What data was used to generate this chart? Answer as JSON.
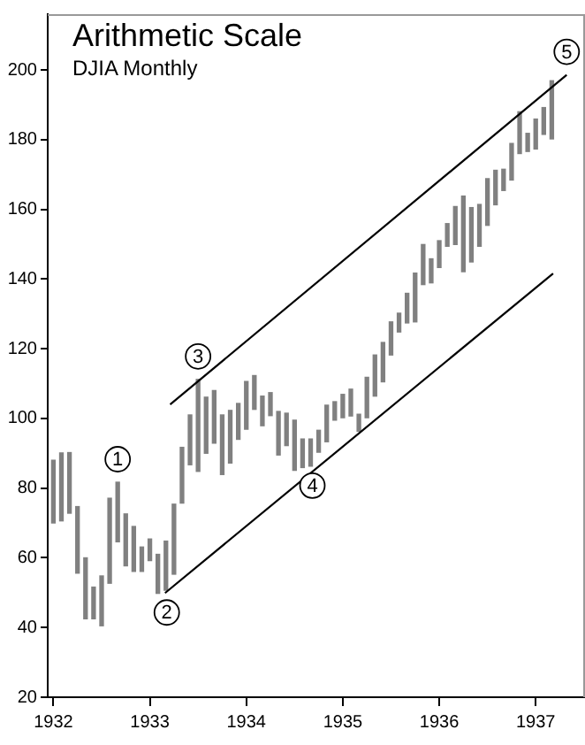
{
  "chart_data": {
    "type": "bar",
    "title": "Arithmetic Scale",
    "subtitle": "DJIA Monthly",
    "x": [
      "1932-01",
      "1932-02",
      "1932-03",
      "1932-04",
      "1932-05",
      "1932-06",
      "1932-07",
      "1932-08",
      "1932-09",
      "1932-10",
      "1932-11",
      "1932-12",
      "1933-01",
      "1933-02",
      "1933-03",
      "1933-04",
      "1933-05",
      "1933-06",
      "1933-07",
      "1933-08",
      "1933-09",
      "1933-10",
      "1933-11",
      "1933-12",
      "1934-01",
      "1934-02",
      "1934-03",
      "1934-04",
      "1934-05",
      "1934-06",
      "1934-07",
      "1934-08",
      "1934-09",
      "1934-10",
      "1934-11",
      "1934-12",
      "1935-01",
      "1935-02",
      "1935-03",
      "1935-04",
      "1935-05",
      "1935-06",
      "1935-07",
      "1935-08",
      "1935-09",
      "1935-10",
      "1935-11",
      "1935-12",
      "1936-01",
      "1936-02",
      "1936-03",
      "1936-04",
      "1936-05",
      "1936-06",
      "1936-07",
      "1936-08",
      "1936-09",
      "1936-10",
      "1936-11",
      "1936-12",
      "1937-01",
      "1937-02",
      "1937-03"
    ],
    "series": [
      {
        "color": "#808080",
        "base": [
          70.0,
          70.6,
          72.8,
          55.6,
          42.5,
          42.5,
          40.5,
          52.7,
          64.6,
          57.7,
          56.1,
          56.1,
          59.2,
          49.8,
          50.7,
          55.3,
          75.7,
          86.7,
          84.8,
          90.0,
          92.9,
          83.9,
          87.2,
          94.0,
          96.9,
          102.6,
          97.9,
          100.8,
          89.5,
          92.2,
          85.1,
          85.9,
          86.3,
          90.3,
          93.3,
          99.5,
          100.2,
          100.7,
          96.3,
          100.2,
          106.4,
          110.5,
          118.2,
          124.8,
          127.4,
          127.7,
          138.4,
          138.9,
          143.3,
          149.4,
          149.9,
          142.1,
          144.9,
          149.4,
          155.4,
          161.3,
          165.4,
          168.4,
          176.0,
          176.6,
          177.3,
          181.5,
          180.2
        ],
        "values": [
          18.0,
          19.5,
          17.4,
          19.1,
          17.5,
          9.1,
          14.3,
          24.4,
          17.1,
          14.9,
          12.9,
          7.0,
          6.2,
          11.2,
          14.1,
          20.1,
          16.0,
          14.3,
          26.4,
          16.1,
          15.1,
          17.1,
          15.1,
          10.3,
          13.7,
          9.7,
          8.5,
          6.6,
          12.5,
          9.3,
          14.4,
          8.2,
          7.8,
          6.3,
          10.5,
          5.3,
          6.7,
          7.7,
          4.9,
          11.6,
          11.8,
          11.3,
          9.5,
          5.4,
          8.5,
          14.0,
          11.5,
          6.9,
          7.7,
          6.5,
          10.9,
          21.7,
          15.6,
          12.0,
          13.4,
          9.9,
          6.1,
          10.5,
          12.0,
          5.2,
          8.6,
          7.7,
          16.7
        ]
      },
      {
        "type": "line",
        "color": "#000000",
        "x": [
          "1933-03-17",
          "1937-04-27"
        ],
        "values": [
          104.0,
          198.6
        ]
      },
      {
        "type": "line",
        "color": "#000000",
        "x": [
          "1933-02-28",
          "1937-03-06"
        ],
        "values": [
          49.9,
          141.6
        ]
      }
    ],
    "annotations": [
      {
        "text": "1",
        "x": "1932-09",
        "y": 81.7
      },
      {
        "text": "2",
        "x": "1933-02-28",
        "y": 49.9
      },
      {
        "text": "3",
        "x": "1933-07",
        "y": 111.2
      },
      {
        "text": "4",
        "x": "1934-09",
        "y": 86.3
      },
      {
        "text": "5",
        "x": "1937-04-27",
        "y": 198.6
      }
    ],
    "xlim": [
      "1931-12-10",
      "1937-07-05"
    ],
    "xticks": [
      "1932",
      "1933",
      "1934",
      "1935",
      "1936",
      "1937"
    ],
    "ylim": [
      20,
      216
    ],
    "yticks": [
      20,
      40,
      60,
      80,
      100,
      120,
      140,
      160,
      180,
      200
    ],
    "grid": false,
    "legend": false,
    "marker": "none",
    "line_style": "solid"
  }
}
